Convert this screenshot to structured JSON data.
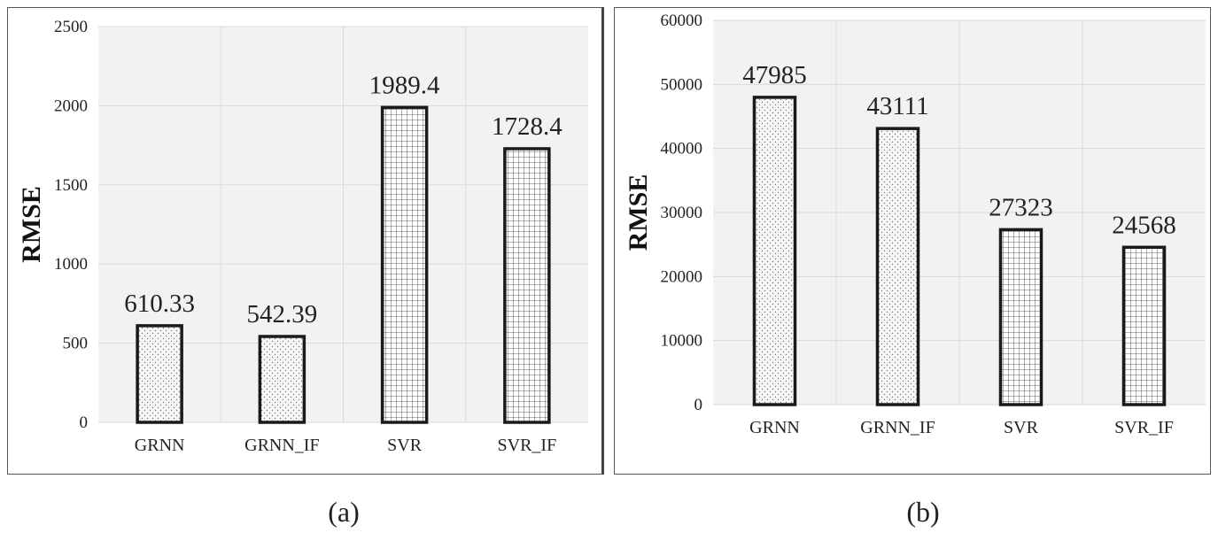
{
  "colors": {
    "plot_bg": "#f2f2f2",
    "grid": "#d9d9d9",
    "bar_stroke": "#1a1a1a",
    "bar_fill": "#f7f7f7",
    "text": "#222222"
  },
  "chart_data": [
    {
      "type": "bar",
      "categories": [
        "GRNN",
        "GRNN_IF",
        "SVR",
        "SVR_IF"
      ],
      "values": [
        610.33,
        542.39,
        1989.4,
        1728.4
      ],
      "data_labels": [
        "610.33",
        "542.39",
        "1989.4",
        "1728.4"
      ],
      "patterns": [
        "dots",
        "dots",
        "grid",
        "grid"
      ],
      "ylabel": "RMSE",
      "ylim": [
        0,
        2500
      ],
      "yticks": [
        0,
        500,
        1000,
        1500,
        2000,
        2500
      ],
      "grid": true,
      "caption": "(a)"
    },
    {
      "type": "bar",
      "categories": [
        "GRNN",
        "GRNN_IF",
        "SVR",
        "SVR_IF"
      ],
      "values": [
        47985,
        43111,
        27323,
        24568
      ],
      "data_labels": [
        "47985",
        "43111",
        "27323",
        "24568"
      ],
      "patterns": [
        "dots",
        "dots",
        "grid",
        "grid"
      ],
      "ylabel": "RMSE",
      "ylim": [
        0,
        60000
      ],
      "yticks": [
        0,
        10000,
        20000,
        30000,
        40000,
        50000,
        60000
      ],
      "grid": true,
      "caption": "(b)"
    }
  ]
}
